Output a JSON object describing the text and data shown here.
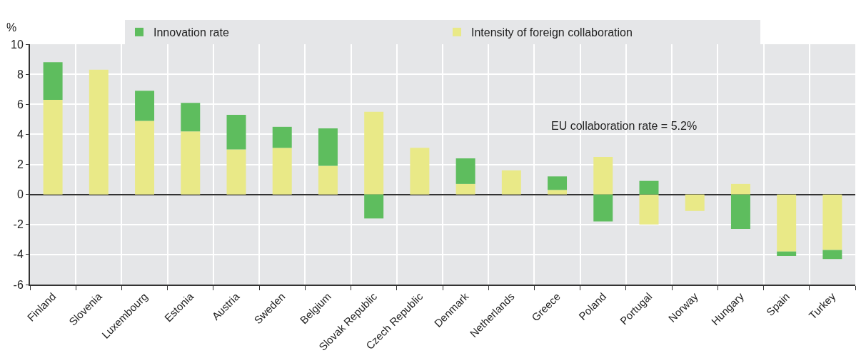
{
  "chart_data": {
    "type": "bar",
    "stacked": true,
    "ylabel": "%",
    "categories": [
      "Finland",
      "Slovenia",
      "Luxembourg",
      "Estonia",
      "Austria",
      "Sweden",
      "Belgium",
      "Slovak Republic",
      "Czech Republic",
      "Denmark",
      "Netherlands",
      "Greece",
      "Poland",
      "Portugal",
      "Norway",
      "Hungary",
      "Spain",
      "Turkey"
    ],
    "series": [
      {
        "name": "Intensity of foreign collaboration",
        "color": "#e9e987",
        "values": [
          6.3,
          8.3,
          4.9,
          4.2,
          3.0,
          3.1,
          1.9,
          5.5,
          3.1,
          0.7,
          1.6,
          0.3,
          2.5,
          -2.0,
          -1.1,
          0.7,
          -3.8,
          -3.7
        ]
      },
      {
        "name": "Innovation rate",
        "color": "#5ebd5e",
        "values": [
          2.5,
          0,
          2.0,
          1.9,
          2.3,
          1.4,
          2.5,
          -1.6,
          0,
          1.7,
          0,
          0.9,
          -1.8,
          0.9,
          0,
          -2.3,
          -0.3,
          -0.6
        ]
      }
    ],
    "ylim": [
      -6,
      10
    ],
    "yticks": [
      -6,
      -4,
      -2,
      0,
      2,
      4,
      6,
      8,
      10
    ],
    "grid": true,
    "legend": "top",
    "annotations": [
      "EU collaboration rate = 5.2%"
    ]
  }
}
